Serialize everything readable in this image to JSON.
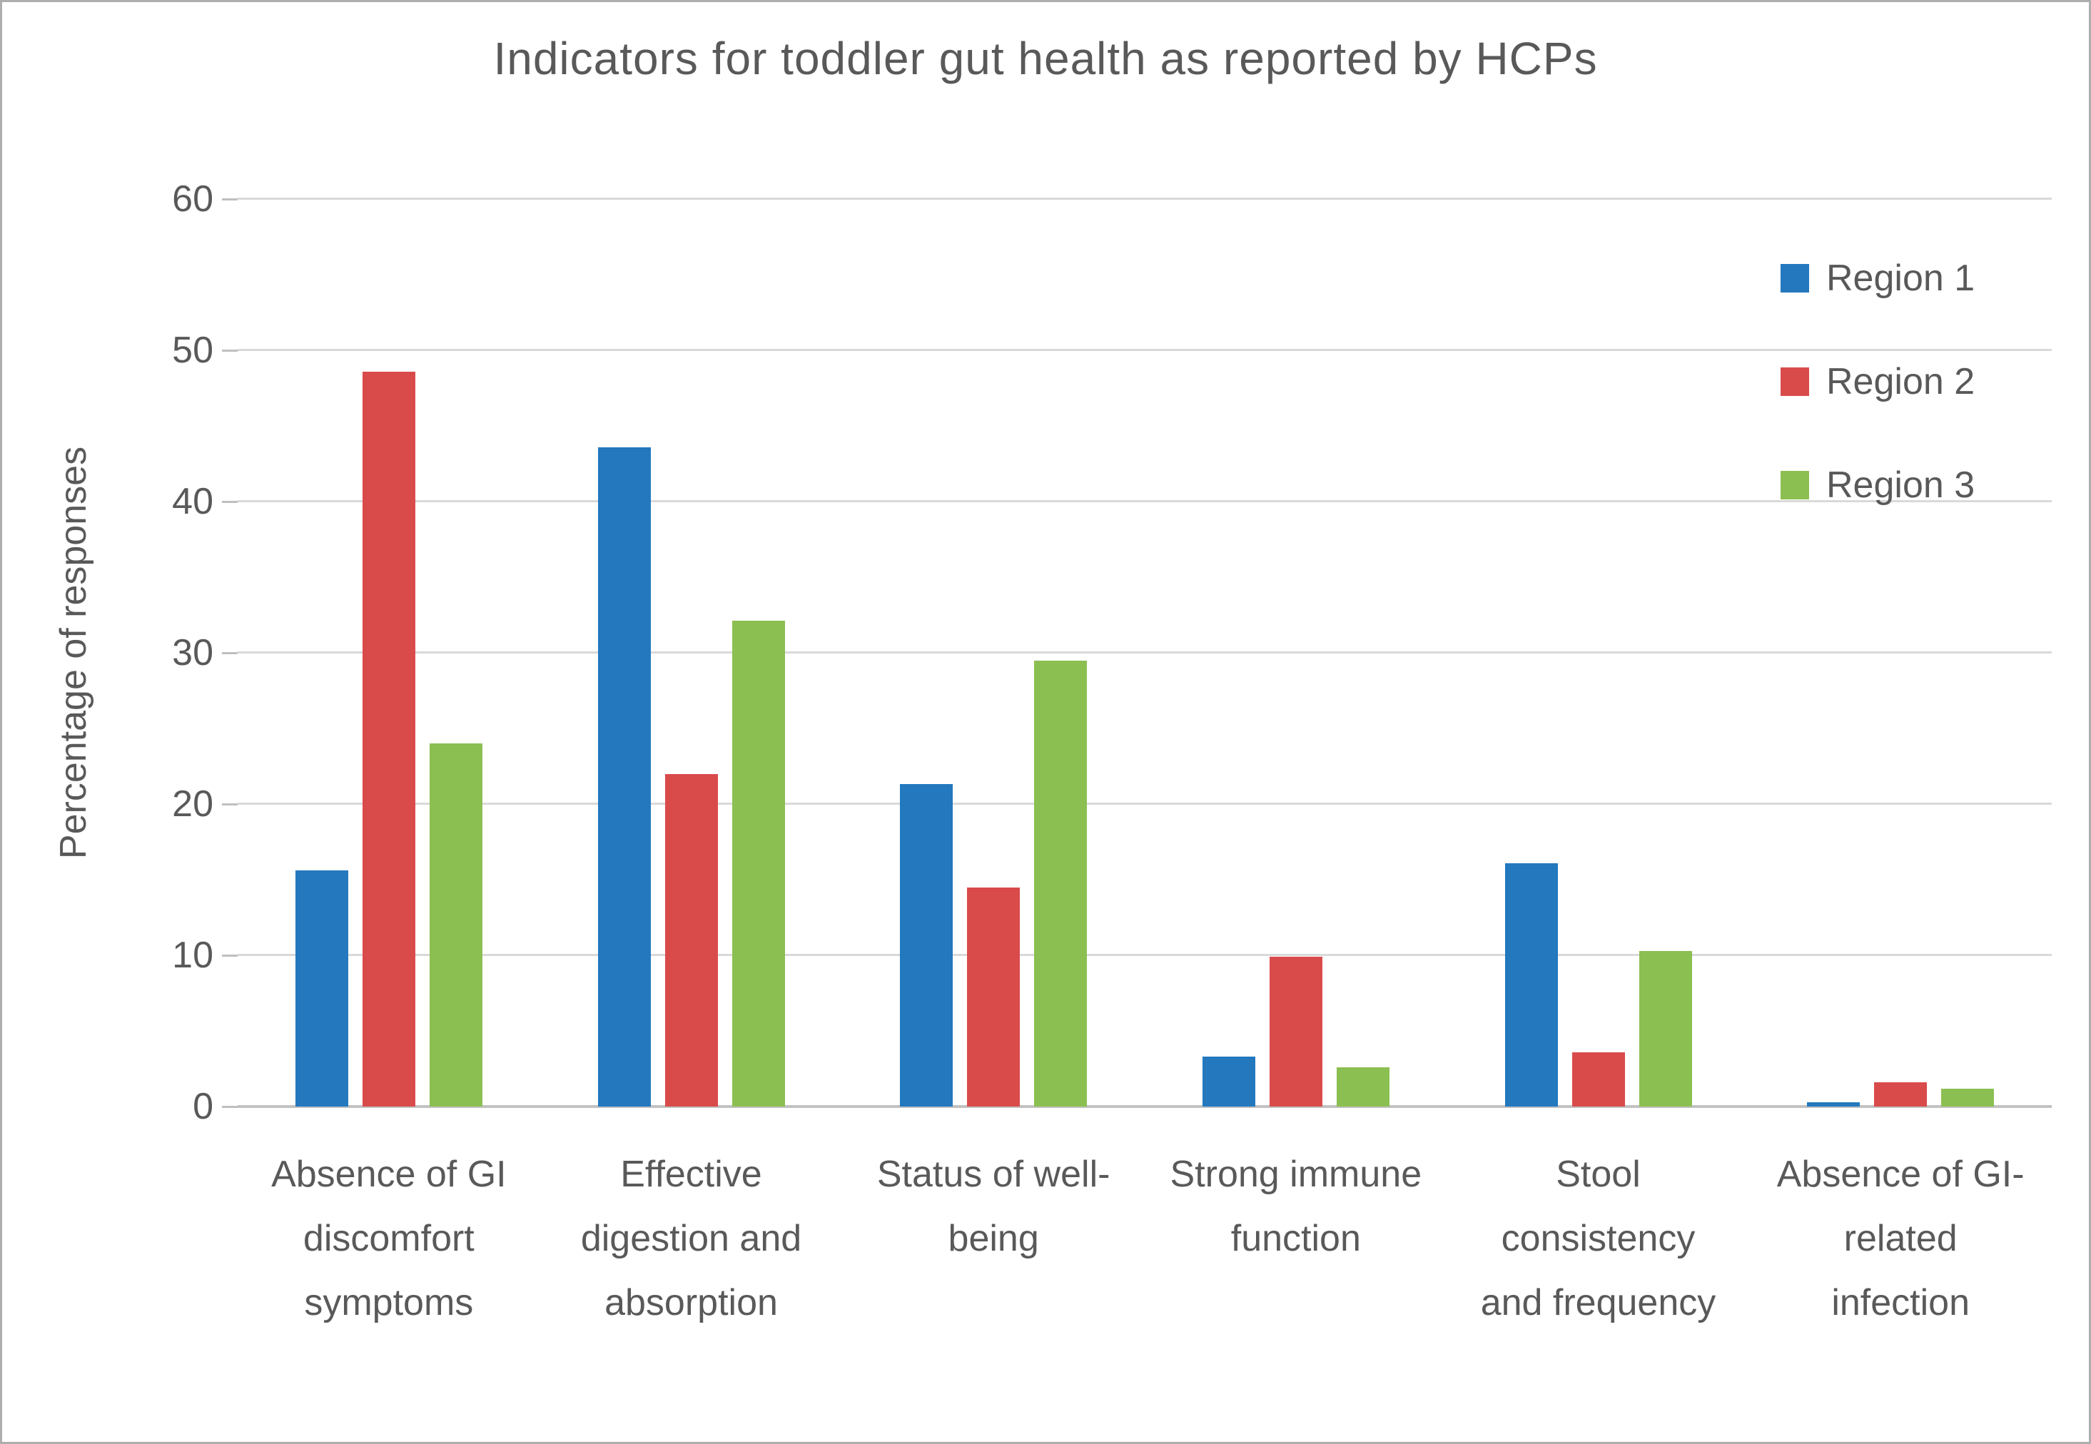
{
  "chart_data": {
    "type": "bar",
    "title": "Indicators for toddler gut health as reported by HCPs",
    "xlabel": "",
    "ylabel": "Percentage of responses",
    "ylim": [
      0,
      60
    ],
    "yticks": [
      0,
      10,
      20,
      30,
      40,
      50,
      60
    ],
    "grid": true,
    "legend_position": "upper-right",
    "categories": [
      "Absence of GI discomfort symptoms",
      "Effective digestion and absorption",
      "Status of well-being",
      "Strong immune function",
      "Stool consistency and frequency",
      "Absence of GI-related infection"
    ],
    "category_label_lines": [
      [
        "Absence of GI",
        "discomfort",
        "symptoms"
      ],
      [
        "Effective",
        "digestion and",
        "absorption"
      ],
      [
        "Status of well-",
        "being"
      ],
      [
        "Strong immune",
        "function"
      ],
      [
        "Stool",
        "consistency",
        "and frequency"
      ],
      [
        "Absence of GI-",
        "related",
        "infection"
      ]
    ],
    "series": [
      {
        "name": "Region 1",
        "color": "#2378be",
        "values": [
          15.6,
          43.6,
          21.3,
          3.3,
          16.1,
          0.3
        ]
      },
      {
        "name": "Region 2",
        "color": "#d94b4b",
        "values": [
          48.6,
          22.0,
          14.5,
          9.9,
          3.6,
          1.6
        ]
      },
      {
        "name": "Region 3",
        "color": "#8cbf52",
        "values": [
          24.0,
          32.1,
          29.5,
          2.6,
          10.3,
          1.2
        ]
      }
    ],
    "colors": {
      "text": "#595959",
      "gridline": "#d9d9d9",
      "axis_line": "#c2c2c2",
      "background": "#ffffff"
    }
  }
}
